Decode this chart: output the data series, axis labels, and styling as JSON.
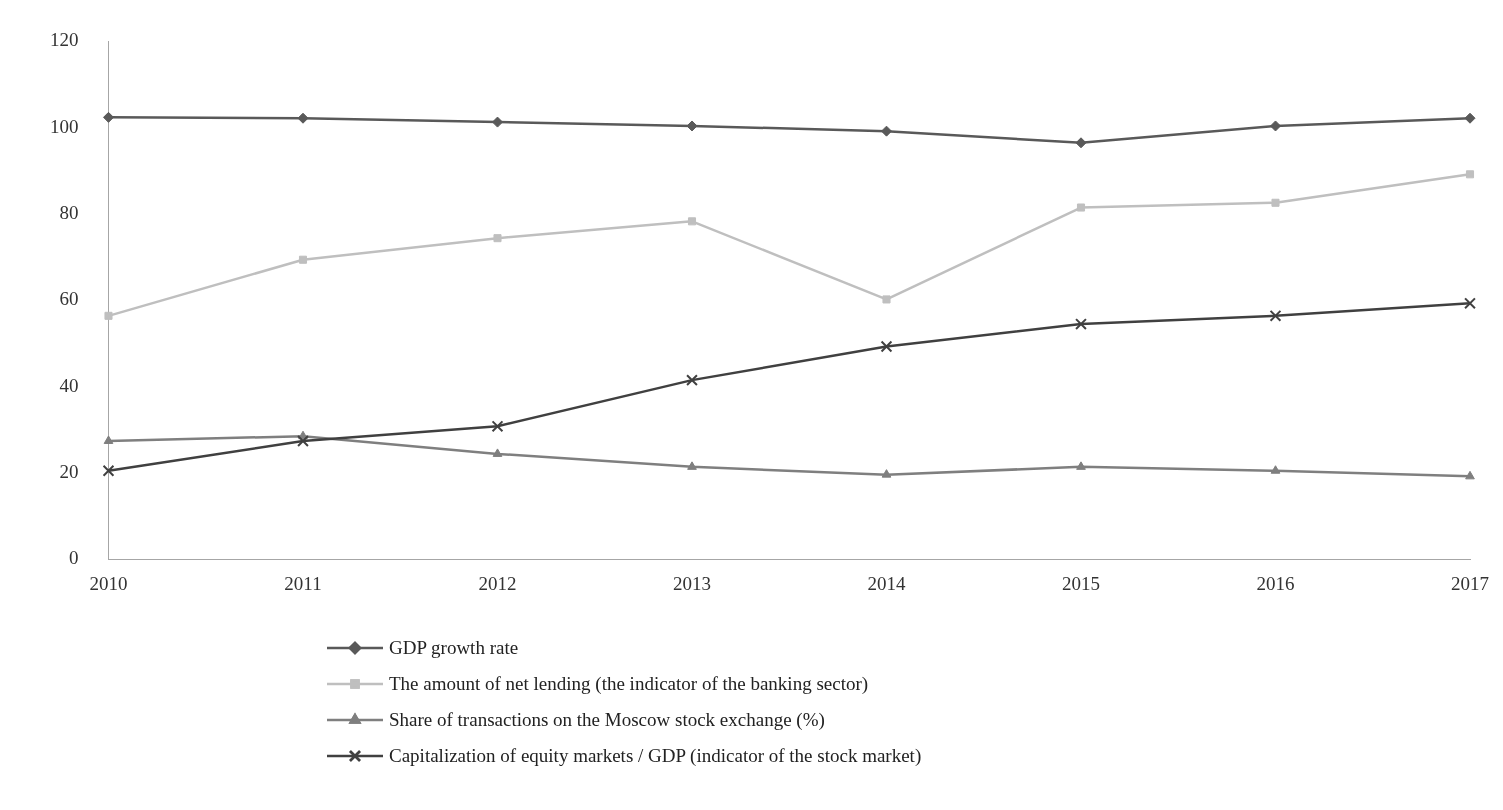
{
  "chart_data": {
    "type": "line",
    "categories": [
      "2010",
      "2011",
      "2012",
      "2013",
      "2014",
      "2015",
      "2016",
      "2017"
    ],
    "series": [
      {
        "name": "GDP growth rate",
        "color": "#595959",
        "marker": "diamond",
        "values": [
          102.4,
          102.2,
          101.3,
          100.4,
          99.2,
          96.5,
          100.4,
          102.2
        ]
      },
      {
        "name": "The amount of net lending (the indicator of the banking sector)",
        "color": "#bfbfbf",
        "marker": "square",
        "values": [
          56.4,
          69.4,
          74.4,
          78.3,
          60.2,
          81.5,
          82.6,
          89.2
        ]
      },
      {
        "name": "Share of transactions on the Moscow stock exchange (%)",
        "color": "#7f7f7f",
        "marker": "triangle",
        "values": [
          27.4,
          28.5,
          24.4,
          21.4,
          19.6,
          21.4,
          20.5,
          19.2
        ]
      },
      {
        "name": "Capitalization of equity markets / GDP (indicator of the stock market)",
        "color": "#404040",
        "marker": "cross",
        "values": [
          20.5,
          27.4,
          30.8,
          41.5,
          49.3,
          54.5,
          56.4,
          59.3
        ]
      }
    ],
    "ylim": [
      0,
      120
    ],
    "yticks": [
      0,
      20,
      40,
      60,
      80,
      100,
      120
    ],
    "grid": false,
    "legend": "bottom",
    "line_style": "solid"
  }
}
